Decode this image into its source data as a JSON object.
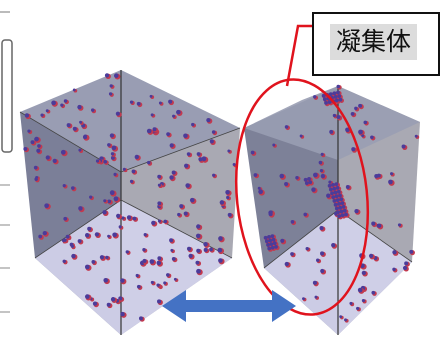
{
  "callout": {
    "label": "凝集体"
  },
  "colors": {
    "cube_top": "#9b9fb5",
    "cube_left": "#7b7f98",
    "cube_right": "#a7a7b1",
    "cube_floor": "#d3d2ec",
    "particle_body": "#4b3c9a",
    "particle_rim": "#c23a4f",
    "ellipse": "#e0131d",
    "arrow": "#4472c4",
    "frame": "#333333"
  },
  "icons": [
    "double-headed-arrow-icon",
    "red-ellipse-marker"
  ]
}
